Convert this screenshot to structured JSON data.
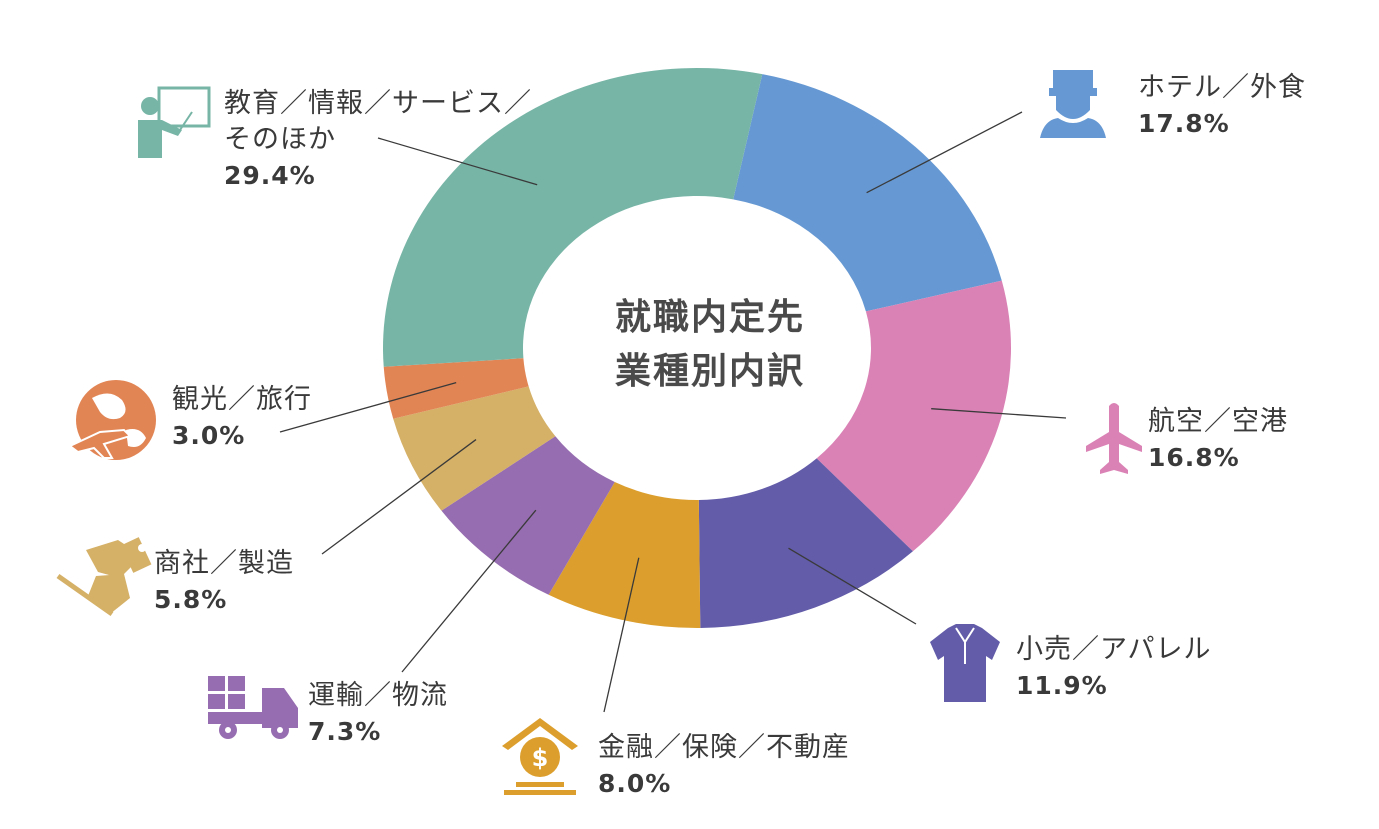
{
  "chart_data": {
    "type": "pie",
    "title": "就職内定先業種別内訳",
    "title_lines": [
      "就職内定先",
      "業種別内訳"
    ],
    "slices": [
      {
        "key": "hotel",
        "name_lines": [
          "ホテル／外食"
        ],
        "value": 17.8,
        "label": "17.8%",
        "color": "#6699d3",
        "icon": "hotel-staff-icon"
      },
      {
        "key": "airline",
        "name_lines": [
          "航空／空港"
        ],
        "value": 16.8,
        "label": "16.8%",
        "color": "#da82b5",
        "icon": "airplane-icon"
      },
      {
        "key": "retail",
        "name_lines": [
          "小売／アパレル"
        ],
        "value": 11.9,
        "label": "11.9%",
        "color": "#625ca9",
        "icon": "shirt-icon"
      },
      {
        "key": "finance",
        "name_lines": [
          "金融／保険／不動産"
        ],
        "value": 8.0,
        "label": "8.0%",
        "color": "#dc9f2d",
        "icon": "money-house-icon"
      },
      {
        "key": "transport",
        "name_lines": [
          "運輸／物流"
        ],
        "value": 7.3,
        "label": "7.3%",
        "color": "#966db0",
        "icon": "truck-icon"
      },
      {
        "key": "trading",
        "name_lines": [
          "商社／製造"
        ],
        "value": 5.8,
        "label": "5.8%",
        "color": "#d5b067",
        "icon": "handshake-icon"
      },
      {
        "key": "tourism",
        "name_lines": [
          "観光／旅行"
        ],
        "value": 3.0,
        "label": "3.0%",
        "color": "#e28555",
        "icon": "globe-plane-icon"
      },
      {
        "key": "education",
        "name_lines": [
          "教育／情報／サービス／",
          "そのほか"
        ],
        "value": 29.4,
        "label": "29.4%",
        "color": "#77b5a6",
        "icon": "teacher-icon"
      }
    ]
  }
}
